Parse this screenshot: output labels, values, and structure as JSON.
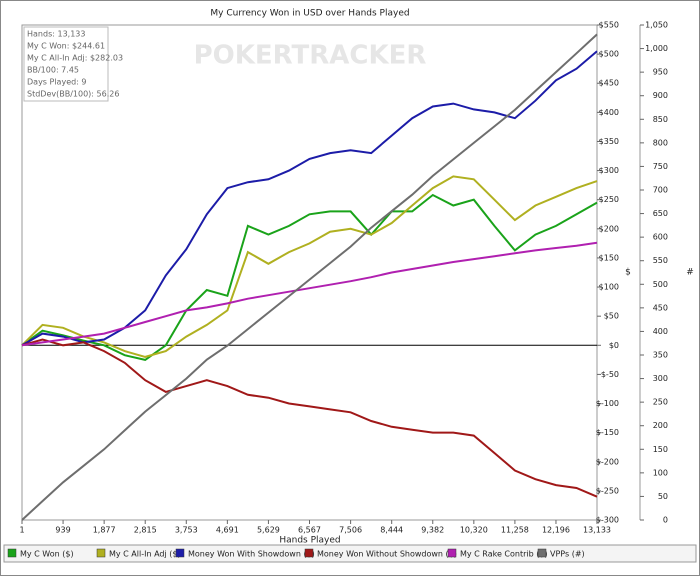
{
  "chart_data": {
    "type": "line",
    "title": "My Currency Won in USD over Hands Played",
    "x_label": "Hands Played",
    "y_label": "$",
    "y2_label": "#",
    "watermark": "POKERTRACKER",
    "stats_box": [
      "Hands: 13,133",
      "My C Won: $244.61",
      "My C All-In Adj: $282.03",
      "BB/100: 7.45",
      "Days Played: 9",
      "StdDev(BB/100): 56.26"
    ],
    "x": [
      1,
      469,
      939,
      1408,
      1877,
      2346,
      2815,
      3284,
      3753,
      4222,
      4691,
      5160,
      5629,
      6098,
      6567,
      7037,
      7506,
      7975,
      8444,
      8913,
      9382,
      9851,
      10320,
      10789,
      11258,
      11727,
      12196,
      12665,
      13133
    ],
    "xlim": [
      1,
      13133
    ],
    "xticks": [
      1,
      {
        "value": 939,
        "label": "939"
      },
      {
        "value": 1877,
        "label": "1,877"
      },
      {
        "value": 2815,
        "label": "2,815"
      },
      {
        "value": 3753,
        "label": "3,753"
      },
      {
        "value": 4691,
        "label": "4,691"
      },
      {
        "value": 5629,
        "label": "5,629"
      },
      {
        "value": 6567,
        "label": "6,567"
      },
      {
        "value": 7506,
        "label": "7,506"
      },
      {
        "value": 8444,
        "label": "8,444"
      },
      {
        "value": 9382,
        "label": "9,382"
      },
      {
        "value": 10320,
        "label": "10,320"
      },
      {
        "value": 11258,
        "label": "11,258"
      },
      {
        "value": 12196,
        "label": "12,196"
      },
      {
        "value": 13133,
        "label": "13,133"
      }
    ],
    "ylim": [
      -300,
      550
    ],
    "yticks": [
      {
        "value": -300,
        "label": "$-300"
      },
      {
        "value": -250,
        "label": "$-250"
      },
      {
        "value": -200,
        "label": "$-200"
      },
      {
        "value": -150,
        "label": "$-150"
      },
      {
        "value": -100,
        "label": "$-100"
      },
      {
        "value": -50,
        "label": "$-50"
      },
      {
        "value": 0,
        "label": "$0"
      },
      {
        "value": 50,
        "label": "$50"
      },
      {
        "value": 100,
        "label": "$100"
      },
      {
        "value": 150,
        "label": "$150"
      },
      {
        "value": 200,
        "label": "$200"
      },
      {
        "value": 250,
        "label": "$250"
      },
      {
        "value": 300,
        "label": "$300"
      },
      {
        "value": 350,
        "label": "$350"
      },
      {
        "value": 400,
        "label": "$400"
      },
      {
        "value": 450,
        "label": "$450"
      },
      {
        "value": 500,
        "label": "$500"
      },
      {
        "value": 550,
        "label": "$550"
      }
    ],
    "y2lim": [
      0,
      1050
    ],
    "y2ticks": [
      0,
      50,
      100,
      150,
      200,
      250,
      300,
      350,
      400,
      450,
      500,
      550,
      600,
      650,
      700,
      750,
      800,
      850,
      900,
      950,
      {
        "value": 1000,
        "label": "1,000"
      },
      {
        "value": 1050,
        "label": "1,050"
      }
    ],
    "series": [
      {
        "name": "My C Won ($)",
        "color": "#1aa31a",
        "values": [
          0,
          25,
          17,
          8,
          0,
          -17,
          -25,
          0,
          60,
          95,
          85,
          205,
          190,
          205,
          225,
          230,
          230,
          190,
          230,
          230,
          258,
          240,
          250,
          205,
          163,
          190,
          205,
          225,
          245
        ]
      },
      {
        "name": "My C All-In Adj ($)",
        "color": "#b0b020",
        "values": [
          0,
          35,
          30,
          15,
          5,
          -10,
          -20,
          -10,
          15,
          35,
          60,
          160,
          140,
          160,
          175,
          195,
          200,
          190,
          210,
          240,
          270,
          290,
          285,
          250,
          215,
          240,
          255,
          270,
          282
        ]
      },
      {
        "name": "Money Won With Showdown ($)",
        "color": "#1c1ca8",
        "values": [
          0,
          20,
          15,
          5,
          10,
          30,
          60,
          120,
          165,
          225,
          270,
          280,
          285,
          300,
          320,
          330,
          335,
          330,
          360,
          390,
          410,
          415,
          405,
          400,
          390,
          420,
          455,
          475,
          505
        ]
      },
      {
        "name": "Money Won Without Showdown ($)",
        "color": "#a01818",
        "values": [
          0,
          10,
          0,
          5,
          -10,
          -30,
          -60,
          -80,
          -70,
          -60,
          -70,
          -85,
          -90,
          -100,
          -105,
          -110,
          -115,
          -130,
          -140,
          -145,
          -150,
          -150,
          -155,
          -185,
          -215,
          -230,
          -240,
          -245,
          -260
        ]
      },
      {
        "name": "My C Rake Contrib ($)",
        "color": "#b020b0",
        "values": [
          0,
          5,
          10,
          15,
          20,
          30,
          40,
          50,
          60,
          65,
          72,
          80,
          86,
          92,
          98,
          104,
          110,
          117,
          125,
          131,
          137,
          143,
          148,
          153,
          158,
          163,
          167,
          171,
          176
        ]
      },
      {
        "name": "VPPs (#)",
        "color": "#6e6e6e",
        "axis": "y2",
        "values": [
          0,
          40,
          80,
          115,
          150,
          190,
          230,
          265,
          300,
          340,
          370,
          405,
          440,
          475,
          510,
          545,
          580,
          620,
          655,
          690,
          730,
          765,
          800,
          835,
          870,
          910,
          950,
          990,
          1030
        ]
      }
    ]
  }
}
